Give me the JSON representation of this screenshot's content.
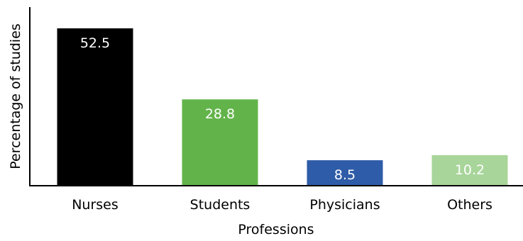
{
  "chart_data": {
    "type": "bar",
    "title": "",
    "xlabel": "Professions",
    "ylabel": "Percentage of studies",
    "categories": [
      "Nurses",
      "Students",
      "Physicians",
      "Others"
    ],
    "values": [
      52.5,
      28.8,
      8.5,
      10.2
    ],
    "value_labels": [
      "52.5",
      "28.8",
      "8.5",
      "10.2"
    ],
    "bar_colors": [
      "#000000",
      "#62b44a",
      "#2f5ca8",
      "#a8d59a"
    ],
    "label_colors": [
      "#ffffff",
      "#ffffff",
      "#ffffff",
      "#ffffff"
    ],
    "ylim": [
      0,
      60
    ],
    "grid": false,
    "legend": "none"
  }
}
